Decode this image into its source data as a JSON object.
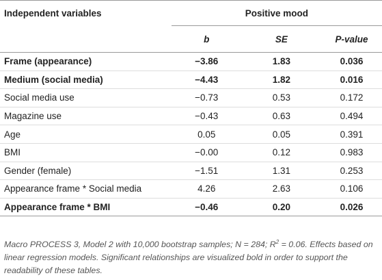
{
  "header": {
    "title": "Independent variables",
    "group": "Positive mood",
    "columns": [
      "b",
      "SE",
      "P-value"
    ]
  },
  "table": {
    "rows": [
      {
        "label": "Frame (appearance)",
        "cells": [
          "−3.86",
          "1.83",
          "0.036"
        ],
        "bold": true
      },
      {
        "label": "Medium (social media)",
        "cells": [
          "−4.43",
          "1.82",
          "0.016"
        ],
        "bold": true
      },
      {
        "label": "Social media use",
        "cells": [
          "−0.73",
          "0.53",
          "0.172"
        ],
        "bold": false
      },
      {
        "label": "Magazine use",
        "cells": [
          "−0.43",
          "0.63",
          "0.494"
        ],
        "bold": false
      },
      {
        "label": "Age",
        "cells": [
          "0.05",
          "0.05",
          "0.391"
        ],
        "bold": false
      },
      {
        "label": "BMI",
        "cells": [
          "−0.00",
          "0.12",
          "0.983"
        ],
        "bold": false
      },
      {
        "label": "Gender (female)",
        "cells": [
          "−1.51",
          "1.31",
          "0.253"
        ],
        "bold": false
      },
      {
        "label": "Appearance frame * Social media",
        "cells": [
          "4.26",
          "2.63",
          "0.106"
        ],
        "bold": false
      },
      {
        "label": "Appearance frame * BMI",
        "cells": [
          "−0.46",
          "0.20",
          "0.026"
        ],
        "bold": true
      }
    ]
  },
  "footnote": {
    "before": "Macro PROCESS 3, Model 2 with 10,000 bootstrap samples; N = 284; R",
    "sup": "2",
    "after": " = 0.06. Effects based on linear regression models. Significant relationships are visualized bold in order to support the readability of these tables."
  }
}
